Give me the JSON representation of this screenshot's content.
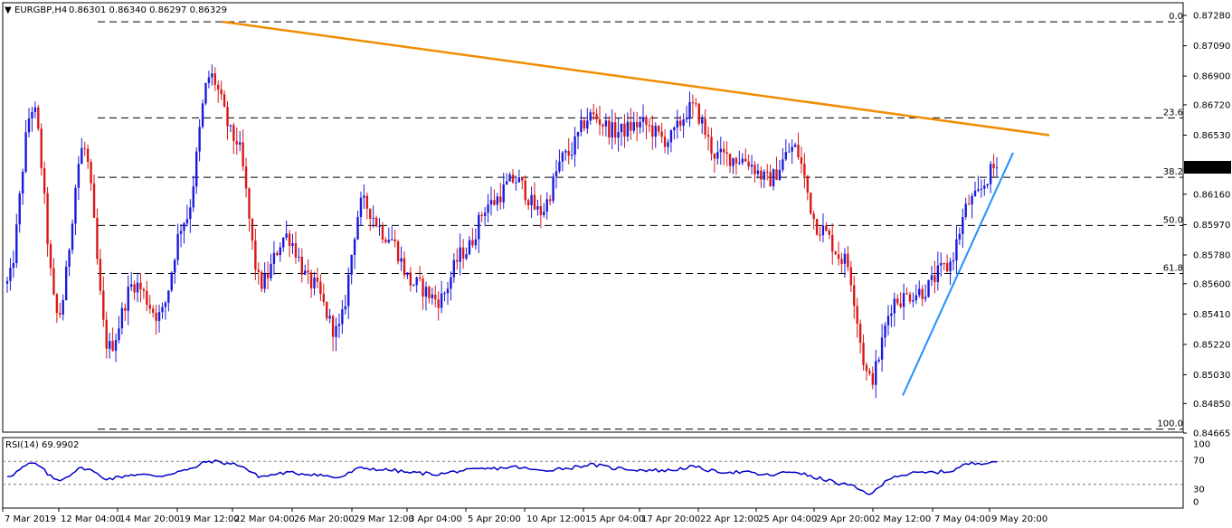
{
  "chart_data": [
    {
      "type": "candlestick",
      "symbol": "EURGBP",
      "timeframe": "H4",
      "ohlc_header": [
        "0.86301",
        "0.86340",
        "0.86297",
        "0.86329"
      ],
      "last_price": "0.86329",
      "colors": {
        "bull": "#1a1adc",
        "bear": "#d81818",
        "trendline": "#f08c00",
        "support_line": "#1e90ff"
      },
      "price_axis_labels": [
        "0.87280",
        "0.87090",
        "0.86900",
        "0.86720",
        "0.86530",
        "0.86160",
        "0.85970",
        "0.85780",
        "0.85600",
        "0.85410",
        "0.85220",
        "0.85030",
        "0.84850",
        "0.84665"
      ],
      "time_axis_labels": [
        "7 Mar 2019",
        "12 Mar 04:00",
        "14 Mar 20:00",
        "19 Mar 12:00",
        "22 Mar 04:00",
        "26 Mar 20:00",
        "29 Mar 12:00",
        "3 Apr 04:00",
        "5 Apr 20:00",
        "10 Apr 12:00",
        "15 Apr 04:00",
        "17 Apr 20:00",
        "22 Apr 12:00",
        "25 Apr 04:00",
        "29 Apr 20:00",
        "2 May 12:00",
        "7 May 04:00",
        "9 May 20:00"
      ],
      "fibonacci": {
        "swing_high": 0.8724,
        "swing_low": 0.8469,
        "levels": [
          {
            "label": "0.0",
            "ratio": 0.0
          },
          {
            "label": "23.6",
            "ratio": 0.236
          },
          {
            "label": "38.2",
            "ratio": 0.382
          },
          {
            "label": "50.0",
            "ratio": 0.5
          },
          {
            "label": "61.8",
            "ratio": 0.618
          },
          {
            "label": "100.0",
            "ratio": 1.0
          }
        ]
      },
      "anchors": [
        {
          "time": "7 Mar 2019",
          "price": 0.856
        },
        {
          "time": "8 Mar",
          "price": 0.867
        },
        {
          "time": "11 Mar",
          "price": 0.854
        },
        {
          "time": "12 Mar 04:00",
          "price": 0.8645
        },
        {
          "time": "13 Mar",
          "price": 0.852
        },
        {
          "time": "14 Mar 20:00",
          "price": 0.856
        },
        {
          "time": "15 Mar",
          "price": 0.854
        },
        {
          "time": "18 Mar",
          "price": 0.86
        },
        {
          "time": "19 Mar 12:00",
          "price": 0.869
        },
        {
          "time": "20 Mar",
          "price": 0.865
        },
        {
          "time": "21 Mar",
          "price": 0.856
        },
        {
          "time": "22 Mar 04:00",
          "price": 0.859
        },
        {
          "time": "25 Mar",
          "price": 0.856
        },
        {
          "time": "26 Mar 20:00",
          "price": 0.853
        },
        {
          "time": "28 Mar",
          "price": 0.861
        },
        {
          "time": "29 Mar 12:00",
          "price": 0.859
        },
        {
          "time": "1 Apr",
          "price": 0.856
        },
        {
          "time": "3 Apr 04:00",
          "price": 0.855
        },
        {
          "time": "4 Apr",
          "price": 0.858
        },
        {
          "time": "5 Apr 20:00",
          "price": 0.861
        },
        {
          "time": "8 Apr",
          "price": 0.8625
        },
        {
          "time": "10 Apr 12:00",
          "price": 0.8605
        },
        {
          "time": "12 Apr",
          "price": 0.864
        },
        {
          "time": "15 Apr 04:00",
          "price": 0.8665
        },
        {
          "time": "16 Apr",
          "price": 0.8655
        },
        {
          "time": "17 Apr 20:00",
          "price": 0.866
        },
        {
          "time": "19 Apr",
          "price": 0.865
        },
        {
          "time": "22 Apr 12:00",
          "price": 0.867
        },
        {
          "time": "24 Apr",
          "price": 0.864
        },
        {
          "time": "25 Apr 04:00",
          "price": 0.8638
        },
        {
          "time": "26 Apr",
          "price": 0.8625
        },
        {
          "time": "29 Apr 20:00",
          "price": 0.8645
        },
        {
          "time": "30 Apr",
          "price": 0.8595
        },
        {
          "time": "1 May",
          "price": 0.8575
        },
        {
          "time": "2 May 12:00",
          "price": 0.85
        },
        {
          "time": "3 May",
          "price": 0.855
        },
        {
          "time": "6 May",
          "price": 0.8555
        },
        {
          "time": "7 May 04:00",
          "price": 0.857
        },
        {
          "time": "8 May",
          "price": 0.8612
        },
        {
          "time": "9 May 20:00",
          "price": 0.8633
        }
      ]
    },
    {
      "type": "line",
      "indicator": "RSI(14)",
      "value_label": "69.9902",
      "color": "#0000c8",
      "ylim": [
        0,
        100
      ],
      "axis_labels": [
        "100",
        "70",
        "30",
        "0"
      ],
      "levels": [
        70,
        30
      ],
      "anchors": [
        {
          "time": "7 Mar 2019",
          "value": 45
        },
        {
          "time": "8 Mar",
          "value": 66
        },
        {
          "time": "11 Mar",
          "value": 38
        },
        {
          "time": "12 Mar 04:00",
          "value": 58
        },
        {
          "time": "13 Mar",
          "value": 40
        },
        {
          "time": "14 Mar 20:00",
          "value": 47
        },
        {
          "time": "15 Mar",
          "value": 45
        },
        {
          "time": "18 Mar",
          "value": 54
        },
        {
          "time": "19 Mar 12:00",
          "value": 70
        },
        {
          "time": "20 Mar",
          "value": 65
        },
        {
          "time": "21 Mar",
          "value": 44
        },
        {
          "time": "22 Mar 04:00",
          "value": 50
        },
        {
          "time": "25 Mar",
          "value": 48
        },
        {
          "time": "26 Mar 20:00",
          "value": 42
        },
        {
          "time": "28 Mar",
          "value": 58
        },
        {
          "time": "29 Mar 12:00",
          "value": 55
        },
        {
          "time": "1 Apr",
          "value": 50
        },
        {
          "time": "3 Apr 04:00",
          "value": 48
        },
        {
          "time": "4 Apr",
          "value": 54
        },
        {
          "time": "5 Apr 20:00",
          "value": 57
        },
        {
          "time": "8 Apr",
          "value": 60
        },
        {
          "time": "10 Apr 12:00",
          "value": 54
        },
        {
          "time": "12 Apr",
          "value": 58
        },
        {
          "time": "15 Apr 04:00",
          "value": 64
        },
        {
          "time": "16 Apr",
          "value": 58
        },
        {
          "time": "17 Apr 20:00",
          "value": 55
        },
        {
          "time": "19 Apr",
          "value": 54
        },
        {
          "time": "22 Apr 12:00",
          "value": 60
        },
        {
          "time": "24 Apr",
          "value": 52
        },
        {
          "time": "25 Apr 04:00",
          "value": 51
        },
        {
          "time": "26 Apr",
          "value": 46
        },
        {
          "time": "29 Apr 20:00",
          "value": 52
        },
        {
          "time": "30 Apr",
          "value": 40
        },
        {
          "time": "1 May",
          "value": 30
        },
        {
          "time": "2 May 12:00",
          "value": 15
        },
        {
          "time": "3 May",
          "value": 45
        },
        {
          "time": "6 May",
          "value": 50
        },
        {
          "time": "7 May 04:00",
          "value": 52
        },
        {
          "time": "8 May",
          "value": 66
        },
        {
          "time": "9 May 20:00",
          "value": 70
        }
      ]
    }
  ]
}
